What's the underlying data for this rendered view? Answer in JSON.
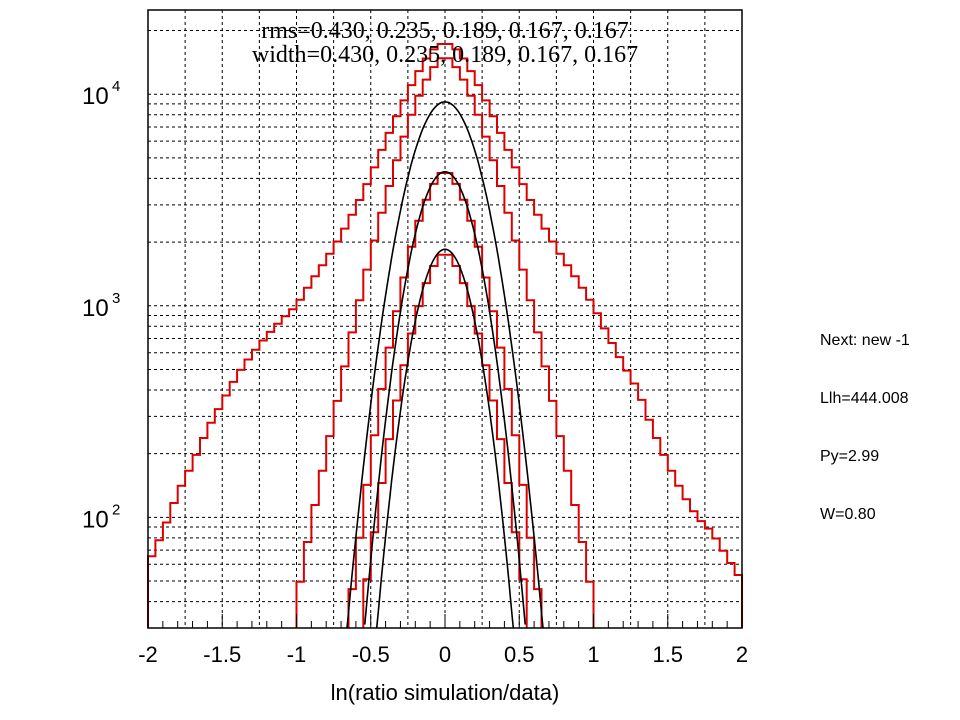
{
  "chart_data": {
    "type": "line",
    "title": "",
    "xlabel": "ln(ratio simulation/data)",
    "ylabel": "",
    "xlim": [
      -2,
      2
    ],
    "ylim": [
      30,
      25000
    ],
    "yscale": "log",
    "grid": true,
    "xticks": [
      "-2",
      "-1.5",
      "-1",
      "-0.5",
      "0",
      "0.5",
      "1",
      "1.5",
      "2"
    ],
    "yticks": [
      {
        "base": "10",
        "exp": "2",
        "value": 100
      },
      {
        "base": "10",
        "exp": "3",
        "value": 1000
      },
      {
        "base": "10",
        "exp": "4",
        "value": 10000
      }
    ],
    "annotations": [
      "rms=0.430, 0.235, 0.189, 0.167, 0.167",
      "width=0.430, 0.235, 0.189, 0.167, 0.167"
    ],
    "series": [
      {
        "kind": "histogram",
        "color": "#dd0000",
        "peak": 17800,
        "width": 0.43,
        "points": [
          [
            -2.0,
            60
          ],
          [
            -1.9,
            85
          ],
          [
            -1.8,
            130
          ],
          [
            -1.7,
            180
          ],
          [
            -1.6,
            260
          ],
          [
            -1.5,
            350
          ],
          [
            -1.4,
            470
          ],
          [
            -1.3,
            590
          ],
          [
            -1.2,
            720
          ],
          [
            -1.1,
            860
          ],
          [
            -1.0,
            1000
          ],
          [
            -0.9,
            1300
          ],
          [
            -0.8,
            1650
          ],
          [
            -0.7,
            2150
          ],
          [
            -0.6,
            2900
          ],
          [
            -0.5,
            4100
          ],
          [
            -0.4,
            6000
          ],
          [
            -0.3,
            8600
          ],
          [
            -0.2,
            12000
          ],
          [
            -0.1,
            15800
          ],
          [
            0.0,
            17800
          ],
          [
            0.1,
            15800
          ],
          [
            0.2,
            12000
          ],
          [
            0.3,
            8600
          ],
          [
            0.4,
            6000
          ],
          [
            0.5,
            4100
          ],
          [
            0.6,
            2900
          ],
          [
            0.7,
            2150
          ],
          [
            0.8,
            1650
          ],
          [
            0.9,
            1300
          ],
          [
            1.0,
            1000
          ],
          [
            1.1,
            720
          ],
          [
            1.2,
            530
          ],
          [
            1.3,
            400
          ],
          [
            1.4,
            260
          ],
          [
            1.5,
            180
          ],
          [
            1.6,
            130
          ],
          [
            1.7,
            100
          ],
          [
            1.8,
            85
          ],
          [
            1.9,
            65
          ],
          [
            2.0,
            50
          ]
        ]
      },
      {
        "kind": "histogram",
        "color": "#dd0000",
        "peak": 15500,
        "width": 0.235,
        "points": [
          [
            -1.0,
            40
          ],
          [
            -0.9,
            95
          ],
          [
            -0.8,
            200
          ],
          [
            -0.7,
            430
          ],
          [
            -0.6,
            900
          ],
          [
            -0.5,
            1750
          ],
          [
            -0.4,
            3200
          ],
          [
            -0.3,
            5600
          ],
          [
            -0.2,
            9000
          ],
          [
            -0.1,
            12800
          ],
          [
            0.0,
            15500
          ],
          [
            0.1,
            12800
          ],
          [
            0.2,
            9000
          ],
          [
            0.3,
            5600
          ],
          [
            0.4,
            3200
          ],
          [
            0.5,
            1750
          ],
          [
            0.6,
            900
          ],
          [
            0.7,
            430
          ],
          [
            0.8,
            200
          ],
          [
            0.9,
            95
          ],
          [
            1.0,
            40
          ]
        ]
      },
      {
        "kind": "histogram",
        "color": "#dd0000",
        "peak": 4500,
        "width": 0.189,
        "points": [
          [
            -0.65,
            35
          ],
          [
            -0.6,
            60
          ],
          [
            -0.5,
            190
          ],
          [
            -0.4,
            520
          ],
          [
            -0.3,
            1150
          ],
          [
            -0.2,
            2250
          ],
          [
            -0.1,
            3550
          ],
          [
            0.0,
            4500
          ],
          [
            0.1,
            3550
          ],
          [
            0.2,
            2250
          ],
          [
            0.3,
            1150
          ],
          [
            0.4,
            520
          ],
          [
            0.5,
            190
          ],
          [
            0.6,
            60
          ],
          [
            0.65,
            35
          ]
        ]
      },
      {
        "kind": "histogram",
        "color": "#dd0000",
        "peak": 1850,
        "width": 0.167,
        "points": [
          [
            -0.55,
            40
          ],
          [
            -0.5,
            65
          ],
          [
            -0.4,
            190
          ],
          [
            -0.3,
            440
          ],
          [
            -0.2,
            880
          ],
          [
            -0.1,
            1450
          ],
          [
            0.0,
            1850
          ],
          [
            0.1,
            1450
          ],
          [
            0.2,
            880
          ],
          [
            0.3,
            440
          ],
          [
            0.4,
            190
          ],
          [
            0.5,
            65
          ],
          [
            0.55,
            40
          ]
        ]
      },
      {
        "kind": "fit",
        "color": "#000000",
        "peak": 9200,
        "sigma": 0.195
      },
      {
        "kind": "fit",
        "color": "#000000",
        "peak": 4300,
        "sigma": 0.172
      },
      {
        "kind": "fit",
        "color": "#000000",
        "peak": 1850,
        "sigma": 0.16
      }
    ]
  },
  "side_panel": {
    "next": "Next: new -1",
    "llh": "Llh=444.008",
    "py": "Py=2.99",
    "w": "W=0.80"
  }
}
